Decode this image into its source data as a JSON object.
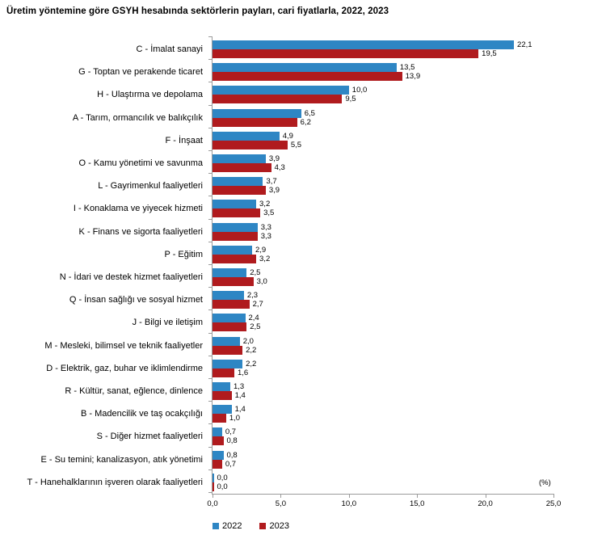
{
  "title": "Üretim yöntemine göre GSYH hesabında sektörlerin payları, cari fiyatlarla, 2022, 2023",
  "unit_label": "(%)",
  "chart_data": {
    "type": "bar",
    "orientation": "horizontal",
    "title": "Üretim yöntemine göre GSYH hesabında sektörlerin payları, cari fiyatlarla, 2022, 2023",
    "xlabel": "(%)",
    "xlim": [
      0,
      25
    ],
    "x_ticks": [
      "0,0",
      "5,0",
      "10,0",
      "15,0",
      "20,0",
      "25,0"
    ],
    "x_tick_values": [
      0,
      5,
      10,
      15,
      20,
      25
    ],
    "grid": "off",
    "legend_position": "bottom",
    "categories": [
      "C - İmalat sanayi",
      "G - Toptan ve perakende ticaret",
      "H - Ulaştırma ve depolama",
      "A - Tarım, ormancılık ve balıkçılık",
      "F - İnşaat",
      "O - Kamu yönetimi ve savunma",
      "L - Gayrimenkul faaliyetleri",
      "I - Konaklama ve yiyecek hizmeti",
      "K - Finans ve sigorta faaliyetleri",
      "P - Eğitim",
      "N - İdari ve destek hizmet faaliyetleri",
      "Q - İnsan sağlığı ve sosyal hizmet",
      "J - Bilgi ve iletişim",
      "M - Mesleki, bilimsel ve teknik faaliyetler",
      "D - Elektrik, gaz, buhar ve iklimlendirme",
      "R - Kültür, sanat, eğlence, dinlence",
      "B - Madencilik ve taş ocakçılığı",
      "S - Diğer hizmet faaliyetleri",
      "E - Su temini; kanalizasyon, atık yönetimi",
      "T - Hanehalklarının işveren olarak faaliyetleri"
    ],
    "series": [
      {
        "name": "2022",
        "color": "#2E86C4",
        "values": [
          22.1,
          13.5,
          10.0,
          6.5,
          4.9,
          3.9,
          3.7,
          3.2,
          3.3,
          2.9,
          2.5,
          2.3,
          2.4,
          2.0,
          2.2,
          1.3,
          1.4,
          0.7,
          0.8,
          0.0
        ],
        "labels": [
          "22,1",
          "13,5",
          "10,0",
          "6,5",
          "4,9",
          "3,9",
          "3,7",
          "3,2",
          "3,3",
          "2,9",
          "2,5",
          "2,3",
          "2,4",
          "2,0",
          "2,2",
          "1,3",
          "1,4",
          "0,7",
          "0,8",
          "0,0"
        ]
      },
      {
        "name": "2023",
        "color": "#B01B1E",
        "values": [
          19.5,
          13.9,
          9.5,
          6.2,
          5.5,
          4.3,
          3.9,
          3.5,
          3.3,
          3.2,
          3.0,
          2.7,
          2.5,
          2.2,
          1.6,
          1.4,
          1.0,
          0.8,
          0.7,
          0.0
        ],
        "labels": [
          "19,5",
          "13,9",
          "9,5",
          "6,2",
          "5,5",
          "4,3",
          "3,9",
          "3,5",
          "3,3",
          "3,2",
          "3,0",
          "2,7",
          "2,5",
          "2,2",
          "1,6",
          "1,4",
          "1,0",
          "0,8",
          "0,7",
          "0,0"
        ]
      }
    ]
  },
  "colors": {
    "axis": "#9b9b9b",
    "series_2022": "#2E86C4",
    "series_2023": "#B01B1E",
    "background": "#ffffff"
  }
}
